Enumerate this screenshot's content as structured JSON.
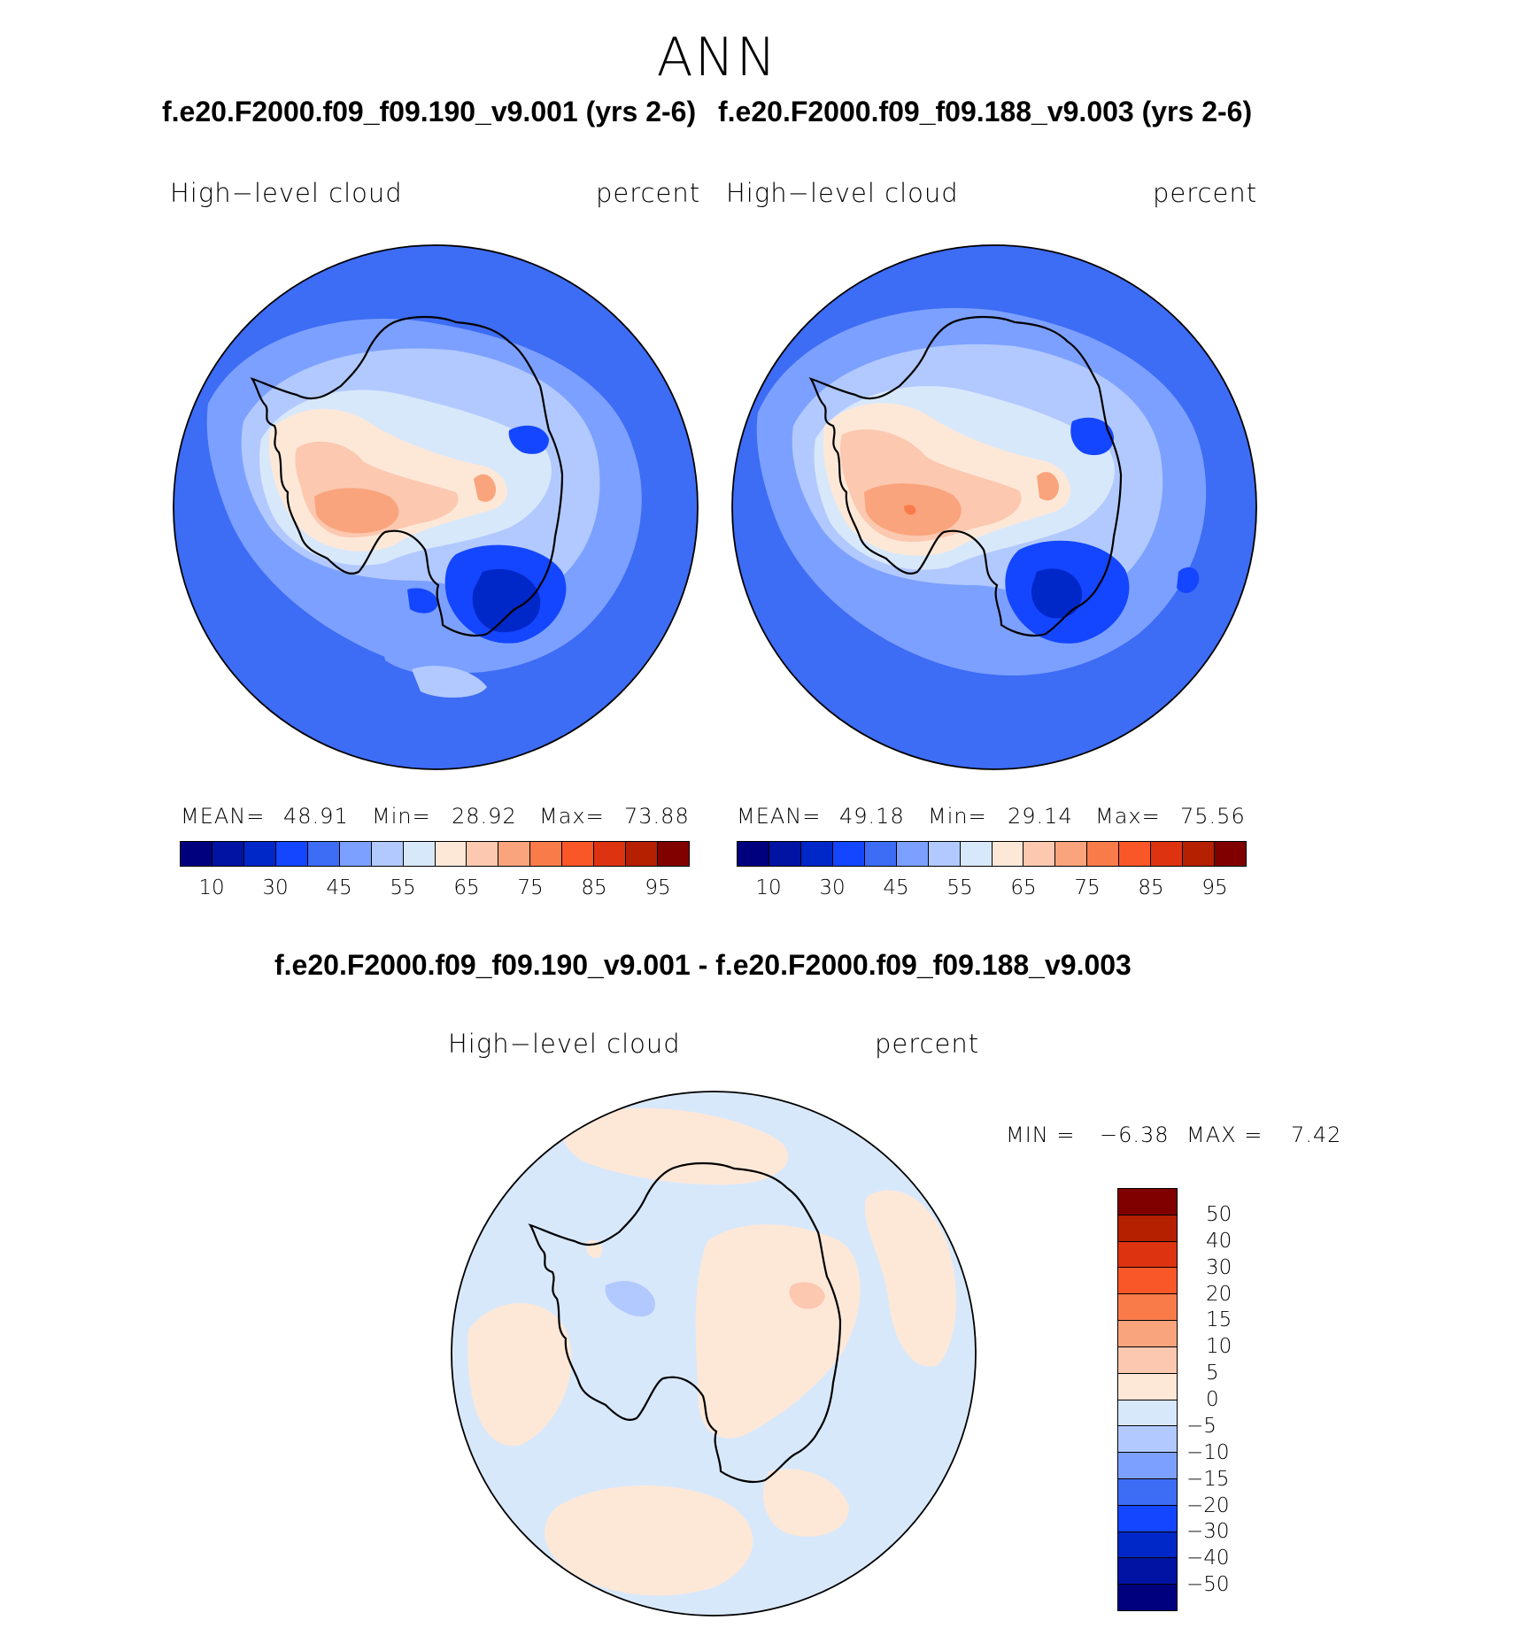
{
  "figure": {
    "title": "ANN",
    "case1_title": "f.e20.F2000.f09_f09.190_v9.001 (yrs 2-6)",
    "case2_title": "f.e20.F2000.f09_f09.188_v9.003 (yrs 2-6)",
    "diff_title": "f.e20.F2000.f09_f09.190_v9.001 - f.e20.F2000.f09_f09.188_v9.003"
  },
  "panels": [
    {
      "variable": "High−level cloud",
      "units": "percent",
      "mean_label": "MEAN=",
      "mean_value": "48.91",
      "min_label": "Min=",
      "min_value": "28.92",
      "max_label": "Max=",
      "max_value": "73.88"
    },
    {
      "variable": "High−level cloud",
      "units": "percent",
      "mean_label": "MEAN=",
      "mean_value": "49.18",
      "min_label": "Min=",
      "min_value": "29.14",
      "max_label": "Max=",
      "max_value": "75.56"
    }
  ],
  "diff_panel": {
    "variable": "High−level cloud",
    "units": "percent",
    "min_label": "MIN =",
    "min_value": "−6.38",
    "max_label": "MAX =",
    "max_value": "7.42"
  },
  "colorbar_main": {
    "colors": [
      "#00007f",
      "#0013a3",
      "#0027c8",
      "#1446ff",
      "#3d6cf5",
      "#7ca0ff",
      "#b2c9ff",
      "#d8e8fb",
      "#fde8d8",
      "#fcc8b0",
      "#f9a47c",
      "#f97b4a",
      "#fa5728",
      "#dd3310",
      "#b42000",
      "#800000"
    ],
    "tick_labels": [
      "10",
      "30",
      "45",
      "55",
      "65",
      "75",
      "85",
      "95"
    ]
  },
  "colorbar_diff": {
    "colors": [
      "#800000",
      "#b42000",
      "#dd3310",
      "#fa5728",
      "#f97b4a",
      "#f9a47c",
      "#fcc8b0",
      "#fde8d8",
      "#d8e8fb",
      "#b2c9ff",
      "#7ca0ff",
      "#3d6cf5",
      "#1446ff",
      "#0027c8",
      "#0013a3",
      "#00007f"
    ],
    "tick_labels": [
      "50",
      "40",
      "30",
      "20",
      "15",
      "10",
      "5",
      "0",
      "−5",
      "−10",
      "−15",
      "−20",
      "−30",
      "−40",
      "−50"
    ]
  },
  "map_colors": {
    "ocean": "#3d6cf5",
    "mid": "#7ca0ff",
    "light_blue": "#b2c9ff",
    "pale_blue": "#d8e8fb",
    "pale_orange": "#fde8d8",
    "light_orange": "#fcc8b0",
    "orange": "#f9a47c",
    "dark_orange": "#f97b4a",
    "deep_blue": "#1446ff",
    "deeper_blue": "#0027c8"
  }
}
